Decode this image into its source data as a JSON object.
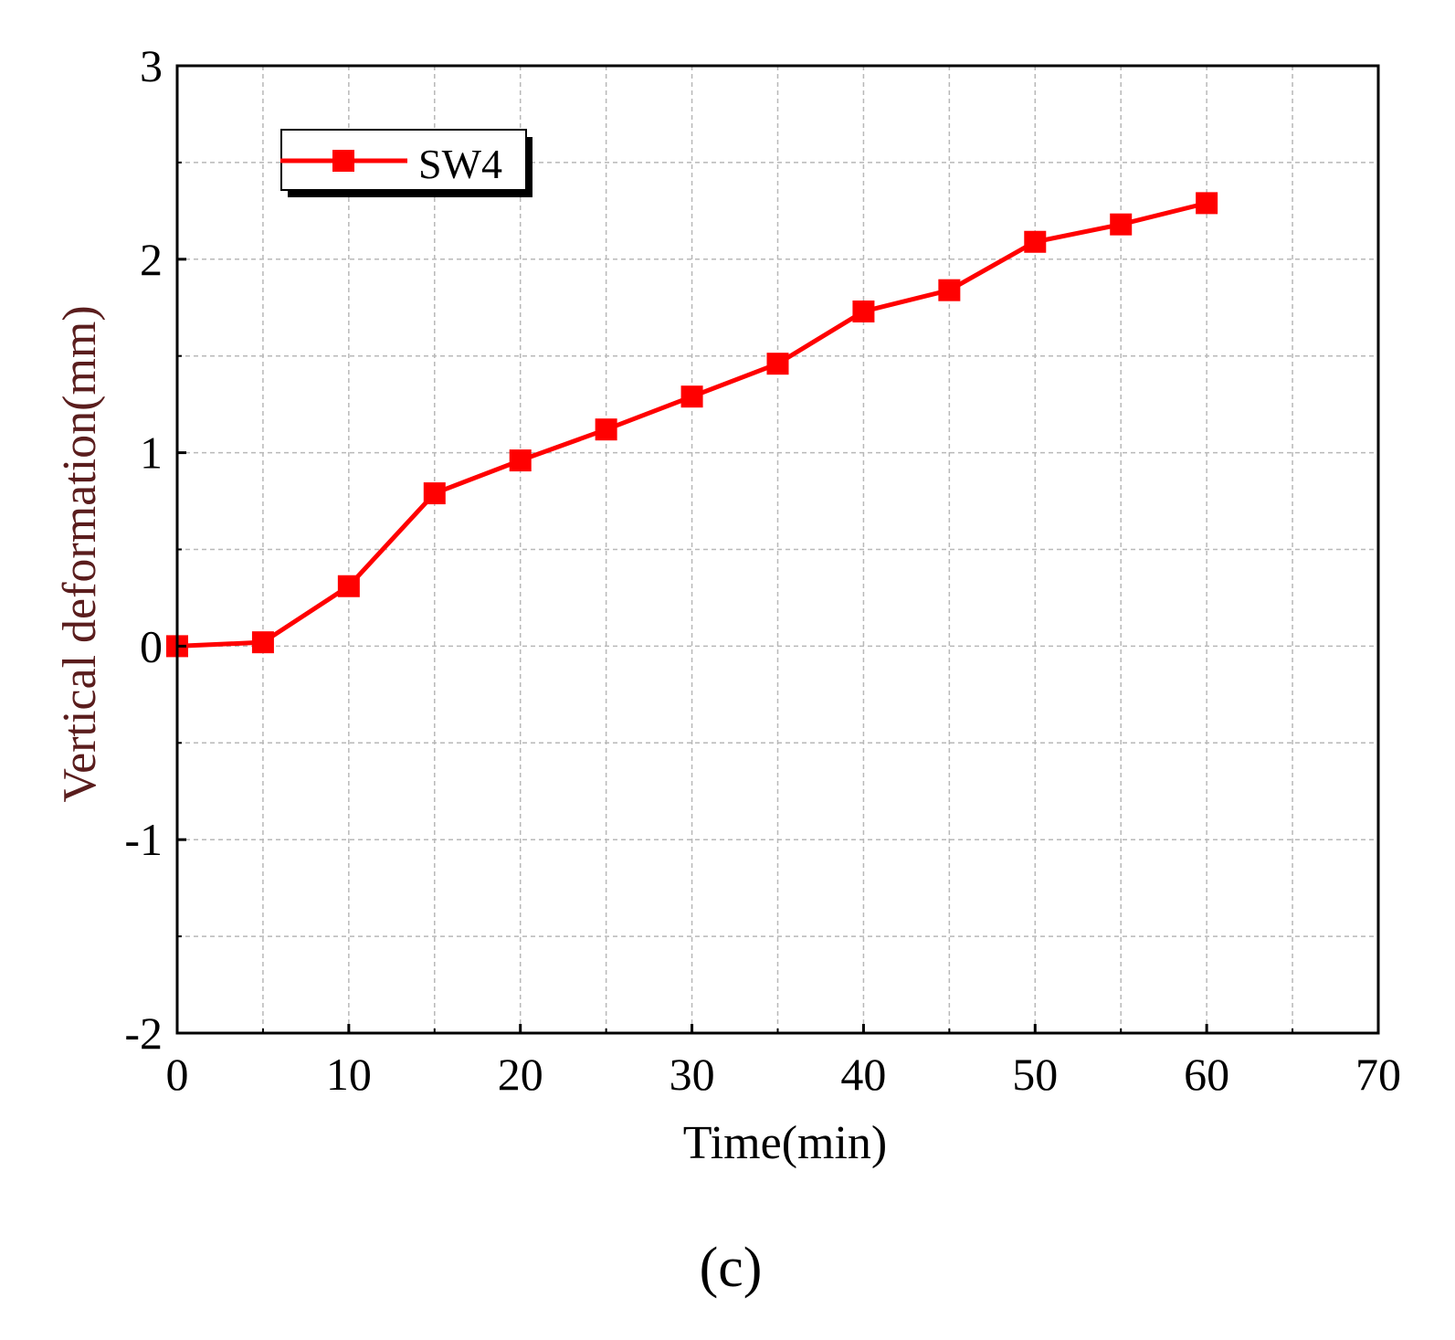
{
  "chart_data": {
    "type": "line",
    "title": "",
    "xlabel": "Time(min)",
    "ylabel": "Vertical deformation(mm)",
    "xlim": [
      0,
      70
    ],
    "ylim": [
      -2,
      3
    ],
    "xticks": [
      0,
      10,
      20,
      30,
      40,
      50,
      60,
      70
    ],
    "yticks": [
      -2,
      -1,
      0,
      1,
      2,
      3
    ],
    "x_tick_labels": [
      "0",
      "10",
      "20",
      "30",
      "40",
      "50",
      "60",
      "70"
    ],
    "y_tick_labels": [
      "-2",
      "-1",
      "0",
      "1",
      "2",
      "3"
    ],
    "grid": true,
    "legend_position": "top-left",
    "series": [
      {
        "name": "SW4",
        "color": "#ff0000",
        "marker": "square",
        "x": [
          0,
          5,
          10,
          15,
          20,
          25,
          30,
          35,
          40,
          45,
          50,
          55,
          60
        ],
        "y": [
          0.0,
          0.02,
          0.31,
          0.79,
          0.96,
          1.12,
          1.29,
          1.46,
          1.73,
          1.84,
          2.09,
          2.18,
          2.29
        ]
      }
    ]
  },
  "panel_label": "(c)"
}
